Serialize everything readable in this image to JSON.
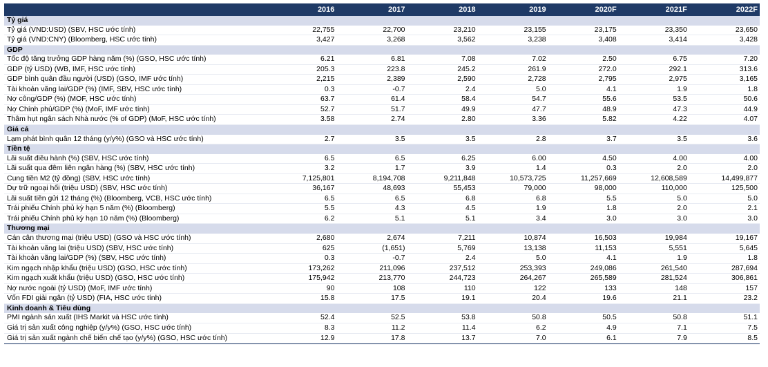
{
  "header": {
    "years": [
      "2016",
      "2017",
      "2018",
      "2019",
      "2020F",
      "2021F",
      "2022F"
    ]
  },
  "sections": [
    {
      "title": "Tỷ giá",
      "rows": [
        {
          "label": "Tỷ giá (VND:USD) (SBV, HSC ước tính)",
          "values": [
            "22,755",
            "22,700",
            "23,210",
            "23,155",
            "23,175",
            "23,350",
            "23,650"
          ]
        },
        {
          "label": "Tỷ giá (VND:CNY) (Bloomberg, HSC ước tính)",
          "values": [
            "3,427",
            "3,268",
            "3,562",
            "3,238",
            "3,408",
            "3,414",
            "3,428"
          ]
        }
      ]
    },
    {
      "title": "GDP",
      "rows": [
        {
          "label": "Tốc độ tăng trưởng GDP hàng năm (%) (GSO, HSC ước tính)",
          "values": [
            "6.21",
            "6.81",
            "7.08",
            "7.02",
            "2.50",
            "6.75",
            "7.20"
          ]
        },
        {
          "label": "GDP (tỷ USD) (WB, IMF, HSC ước tính)",
          "values": [
            "205.3",
            "223.8",
            "245.2",
            "261.9",
            "272.0",
            "292.1",
            "313.6"
          ]
        },
        {
          "label": "GDP bình quân đầu người (USD) (GSO, IMF ước tính)",
          "values": [
            "2,215",
            "2,389",
            "2,590",
            "2,728",
            "2,795",
            "2,975",
            "3,165"
          ]
        },
        {
          "label": "Tài khoản vãng lai/GDP (%) (IMF, SBV, HSC ước tính)",
          "values": [
            "0.3",
            "-0.7",
            "2.4",
            "5.0",
            "4.1",
            "1.9",
            "1.8"
          ]
        },
        {
          "label": "Nợ công/GDP (%) (MOF, HSC ước tính)",
          "values": [
            "63.7",
            "61.4",
            "58.4",
            "54.7",
            "55.6",
            "53.5",
            "50.6"
          ]
        },
        {
          "label": "Nợ Chính phủ/GDP (%) (MoF, IMF ước tính)",
          "values": [
            "52.7",
            "51.7",
            "49.9",
            "47.7",
            "48.9",
            "47.3",
            "44.9"
          ]
        },
        {
          "label": "Thâm hụt ngân sách Nhà nước (% of GDP) (MoF, HSC ước tính)",
          "values": [
            "3.58",
            "2.74",
            "2.80",
            "3.36",
            "5.82",
            "4.22",
            "4.07"
          ]
        }
      ]
    },
    {
      "title": "Giá cả",
      "rows": [
        {
          "label": "Lạm phát bình quân 12 tháng (y/y%) (GSO và HSC ước tính)",
          "values": [
            "2.7",
            "3.5",
            "3.5",
            "2.8",
            "3.7",
            "3.5",
            "3.6"
          ]
        }
      ]
    },
    {
      "title": "Tiền tệ",
      "rows": [
        {
          "label": "Lãi suất điều hành (%) (SBV, HSC ước tính)",
          "values": [
            "6.5",
            "6.5",
            "6.25",
            "6.00",
            "4.50",
            "4.00",
            "4.00"
          ]
        },
        {
          "label": "Lãi suất qua đêm liên ngân hàng (%) (SBV, HSC ước tính)",
          "values": [
            "3.2",
            "1.7",
            "3.9",
            "1.4",
            "0.3",
            "2.0",
            "2.0"
          ]
        },
        {
          "label": "Cung tiền M2 (tỷ đồng) (SBV, HSC ước tính)",
          "values": [
            "7,125,801",
            "8,194,708",
            "9,211,848",
            "10,573,725",
            "11,257,669",
            "12,608,589",
            "14,499,877"
          ]
        },
        {
          "label": "Dự trữ ngoại hối (triệu USD) (SBV, HSC ước tính)",
          "values": [
            "36,167",
            "48,693",
            "55,453",
            "79,000",
            "98,000",
            "110,000",
            "125,500"
          ]
        },
        {
          "label": "Lãi suất tiền gửi 12 tháng (%) (Bloomberg, VCB, HSC ước tính)",
          "values": [
            "6.5",
            "6.5",
            "6.8",
            "6.8",
            "5.5",
            "5.0",
            "5.0"
          ]
        },
        {
          "label": "Trái phiếu Chính phủ kỳ hạn 5 năm (%) (Bloomberg)",
          "values": [
            "5.5",
            "4.3",
            "4.5",
            "1.9",
            "1.8",
            "2.0",
            "2.1"
          ]
        },
        {
          "label": "Trái phiếu Chính phủ kỳ hạn 10 năm (%) (Bloomberg)",
          "values": [
            "6.2",
            "5.1",
            "5.1",
            "3.4",
            "3.0",
            "3.0",
            "3.0"
          ]
        }
      ]
    },
    {
      "title": "Thương mại",
      "rows": [
        {
          "label": "Cán cân thương mại (triệu USD) (GSO và HSC ước tính)",
          "values": [
            "2,680",
            "2,674",
            "7,211",
            "10,874",
            "16,503",
            "19,984",
            "19,167"
          ]
        },
        {
          "label": "Tài khoản vãng lai (triệu USD) (SBV, HSC ước tính)",
          "values": [
            "625",
            "(1,651)",
            "5,769",
            "13,138",
            "11,153",
            "5,551",
            "5,645"
          ]
        },
        {
          "label": "Tài khoản vãng lai/GDP (%) (SBV, HSC ước tính)",
          "values": [
            "0.3",
            "-0.7",
            "2.4",
            "5.0",
            "4.1",
            "1.9",
            "1.8"
          ]
        },
        {
          "label": "Kim ngạch nhập khẩu (triệu USD) (GSO, HSC ước tính)",
          "values": [
            "173,262",
            "211,096",
            "237,512",
            "253,393",
            "249,086",
            "261,540",
            "287,694"
          ]
        },
        {
          "label": "Kim ngạch xuất khẩu (triệu USD) (GSO, HSC ước tính)",
          "values": [
            "175,942",
            "213,770",
            "244,723",
            "264,267",
            "265,589",
            "281,524",
            "306,861"
          ]
        },
        {
          "label": "Nợ nước ngoài (tỷ USD) (MoF, IMF ước tính)",
          "values": [
            "90",
            "108",
            "110",
            "122",
            "133",
            "148",
            "157"
          ]
        },
        {
          "label": "Vốn FDI giải ngân (tỷ USD) (FIA, HSC ước tính)",
          "values": [
            "15.8",
            "17.5",
            "19.1",
            "20.4",
            "19.6",
            "21.1",
            "23.2"
          ]
        }
      ]
    },
    {
      "title": "Kinh doanh & Tiêu dùng",
      "rows": [
        {
          "label": "PMI ngành sản xuất (IHS Markit và HSC ước tính)",
          "values": [
            "52.4",
            "52.5",
            "53.8",
            "50.8",
            "50.5",
            "50.8",
            "51.1"
          ]
        },
        {
          "label": "Giá trị sản xuất công nghiệp (y/y%) (GSO, HSC ước tính)",
          "values": [
            "8.3",
            "11.2",
            "11.4",
            "6.2",
            "4.9",
            "7.1",
            "7.5"
          ]
        },
        {
          "label": "Giá trị sản xuất ngành chế biến chế tạo (y/y%) (GSO, HSC ước tính)",
          "values": [
            "12.9",
            "17.8",
            "13.7",
            "7.0",
            "6.1",
            "7.9",
            "8.5"
          ]
        }
      ]
    }
  ]
}
